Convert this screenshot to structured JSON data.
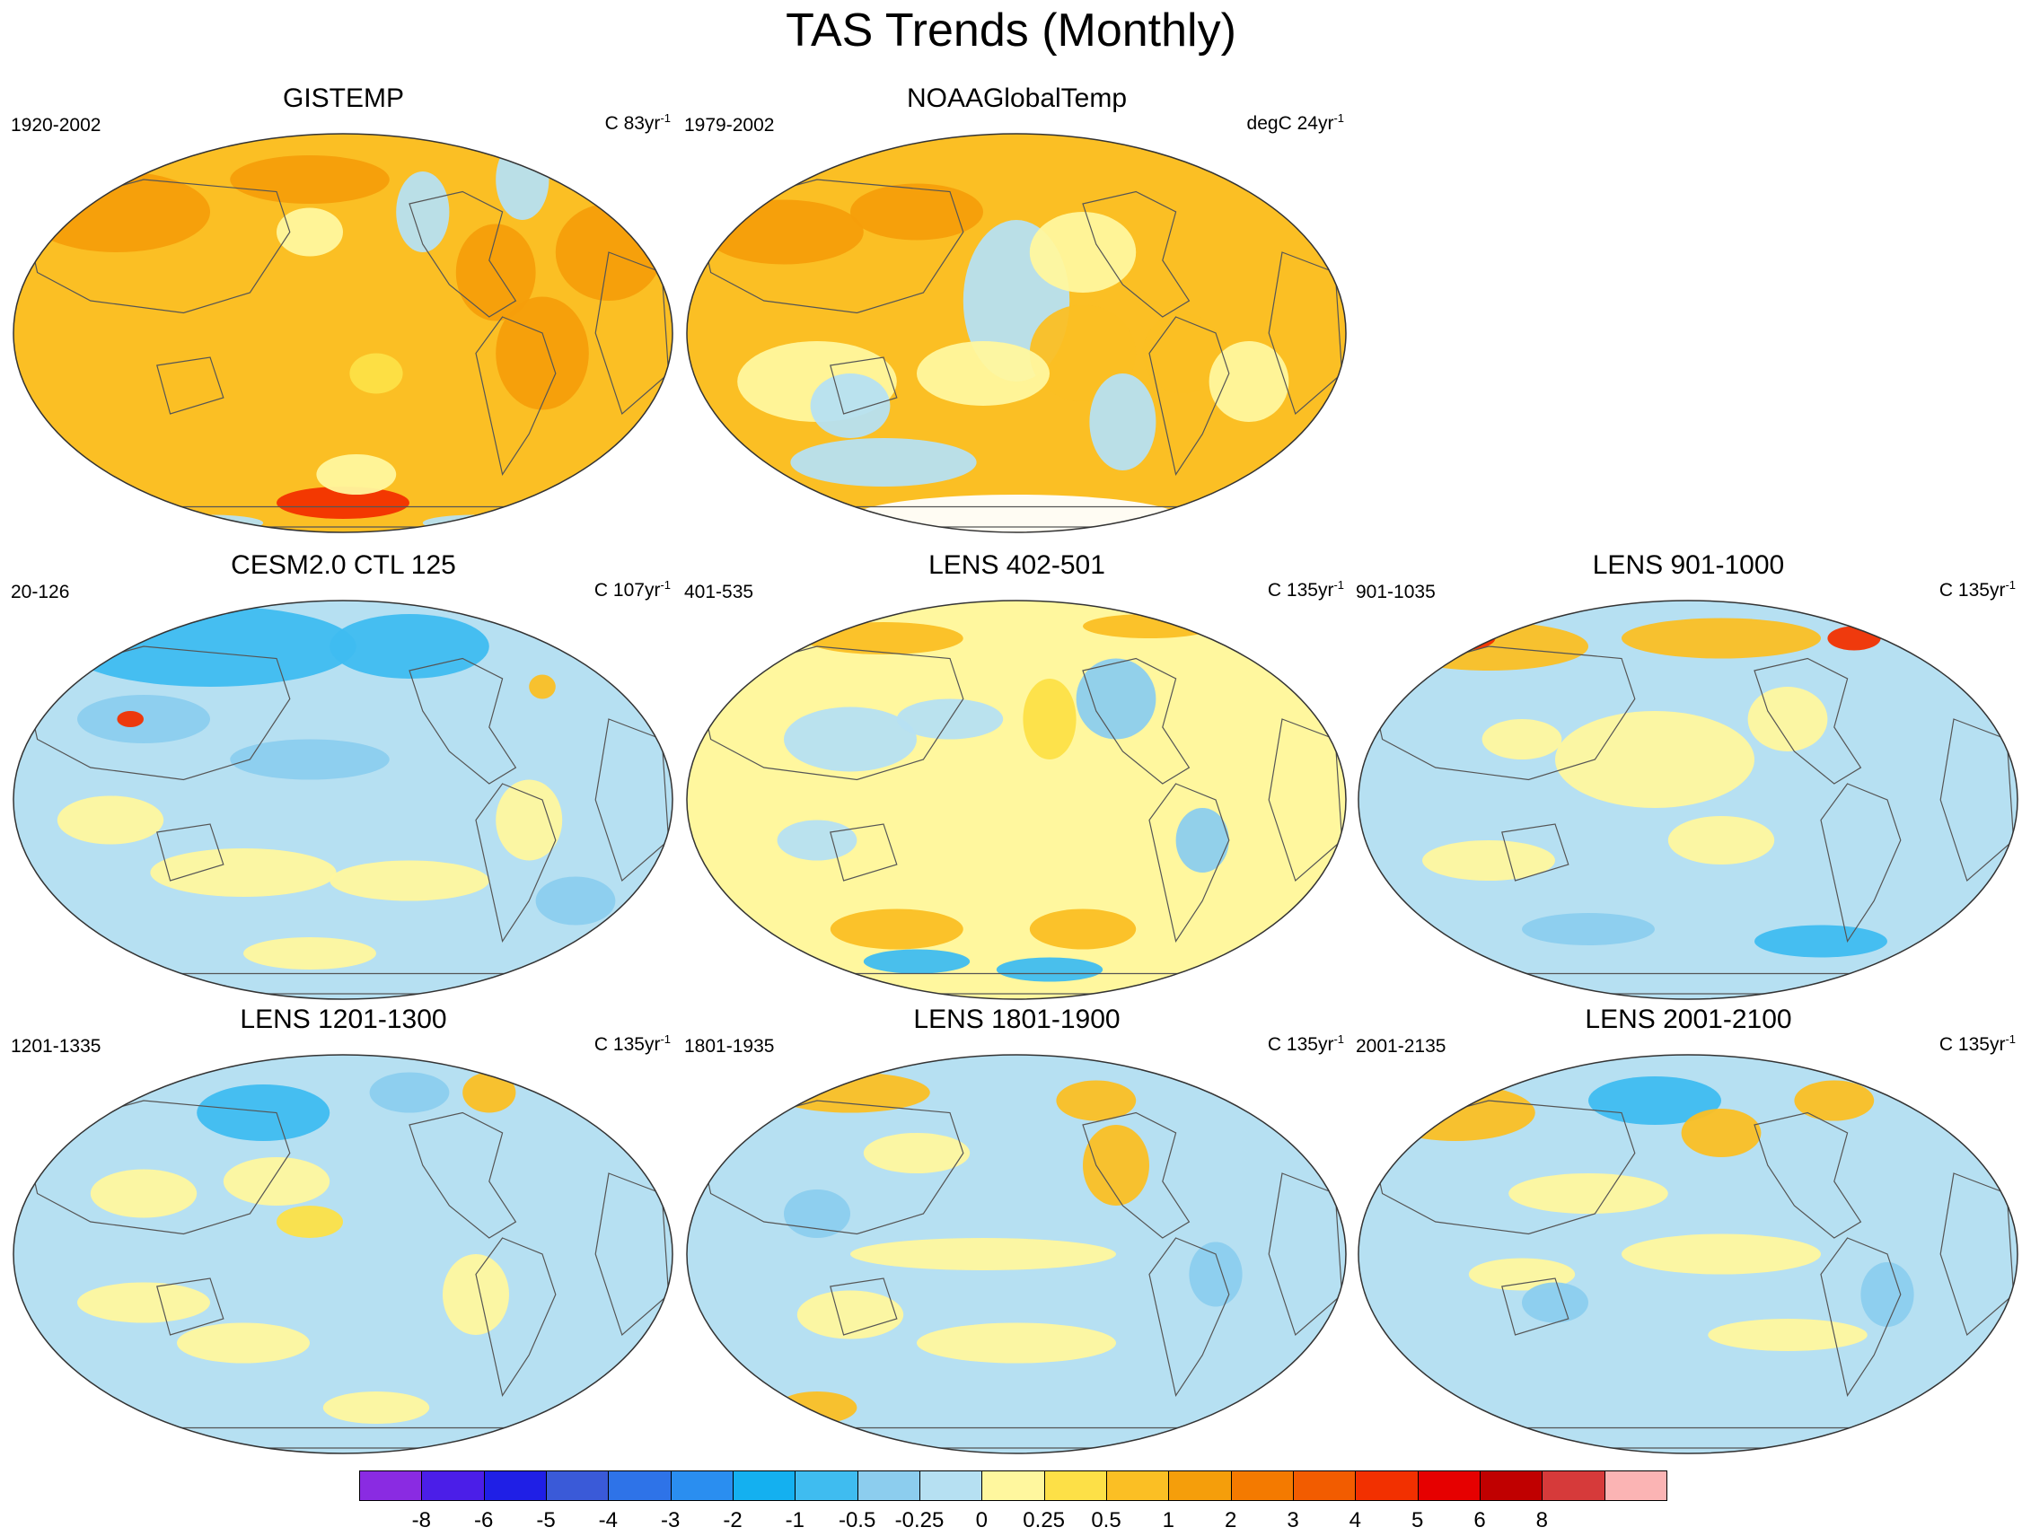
{
  "title": "TAS Trends (Monthly)",
  "panels": [
    {
      "title": "GISTEMP",
      "left": "1920-2002",
      "unit": "C 83yr",
      "sup": "-1",
      "scheme": "warm"
    },
    {
      "title": "NOAAGlobalTemp",
      "left": "1979-2002",
      "unit": "degC 24yr",
      "sup": "-1",
      "scheme": "noaa"
    },
    {
      "title": "CESM2.0 CTL 125",
      "left": "20-126",
      "unit": "C 107yr",
      "sup": "-1",
      "scheme": "cool"
    },
    {
      "title": "LENS 402-501",
      "left": "401-535",
      "unit": "C 135yr",
      "sup": "-1",
      "scheme": "mixed"
    },
    {
      "title": "LENS 901-1000",
      "left": "901-1035",
      "unit": "C 135yr",
      "sup": "-1",
      "scheme": "mixed2"
    },
    {
      "title": "LENS 1201-1300",
      "left": "1201-1335",
      "unit": "C 135yr",
      "sup": "-1",
      "scheme": "mixed3"
    },
    {
      "title": "LENS 1801-1900",
      "left": "1801-1935",
      "unit": "C 135yr",
      "sup": "-1",
      "scheme": "mixed"
    },
    {
      "title": "LENS 2001-2100",
      "left": "2001-2135",
      "unit": "C 135yr",
      "sup": "-1",
      "scheme": "mixed2"
    }
  ],
  "colorbar": {
    "colors": [
      "#8a2be2",
      "#4b1ee8",
      "#1f1fe6",
      "#3a5ad8",
      "#2e73e8",
      "#2a8ef0",
      "#14b0f0",
      "#3fbcf0",
      "#8ccdee",
      "#b6e0f2",
      "#fff79e",
      "#fde047",
      "#fbbf24",
      "#f59e0b",
      "#f47a00",
      "#f25c00",
      "#f23000",
      "#e60000",
      "#c00000",
      "#d63a3a",
      "#fbb4b4"
    ],
    "labels": [
      "-8",
      "-6",
      "-5",
      "-4",
      "-3",
      "-2",
      "-1",
      "-0.5",
      "-0.25",
      "0",
      "0.25",
      "0.5",
      "1",
      "2",
      "3",
      "4",
      "5",
      "6",
      "8"
    ]
  }
}
